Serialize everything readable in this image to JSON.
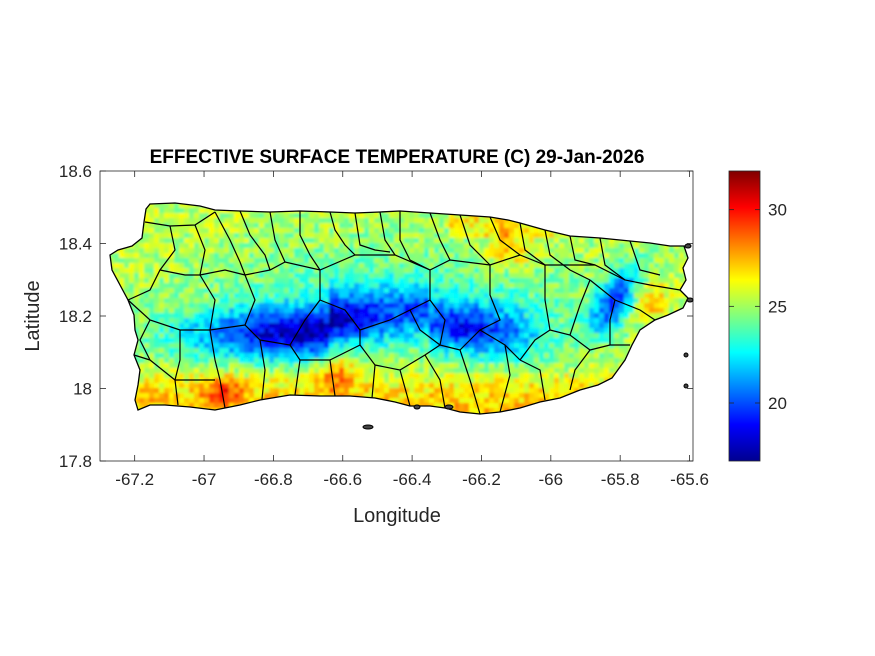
{
  "chart_data": {
    "type": "heatmap",
    "title": "EFFECTIVE SURFACE TEMPERATURE (C) 29-Jan-2026",
    "xlabel": "Longitude",
    "ylabel": "Latitude",
    "xlim": [
      -67.3,
      -65.59
    ],
    "ylim": [
      17.8,
      18.6
    ],
    "x_ticks": [
      -67.2,
      -67,
      -66.8,
      -66.6,
      -66.4,
      -66.2,
      -66,
      -65.8,
      -65.6
    ],
    "x_tick_labels": [
      "-67.2",
      "-67",
      "-66.8",
      "-66.6",
      "-66.4",
      "-66.2",
      "-66",
      "-65.8",
      "-65.6"
    ],
    "y_ticks": [
      17.8,
      18,
      18.2,
      18.4,
      18.6
    ],
    "y_tick_labels": [
      "17.8",
      "18",
      "18.2",
      "18.4",
      "18.6"
    ],
    "colorbar": {
      "colormap": "jet",
      "clim": [
        17,
        32
      ],
      "ticks": [
        20,
        25,
        30
      ],
      "tick_labels": [
        "20",
        "25",
        "30"
      ]
    },
    "region": "Puerto Rico",
    "boundaries": "municipalities",
    "grid": false
  }
}
